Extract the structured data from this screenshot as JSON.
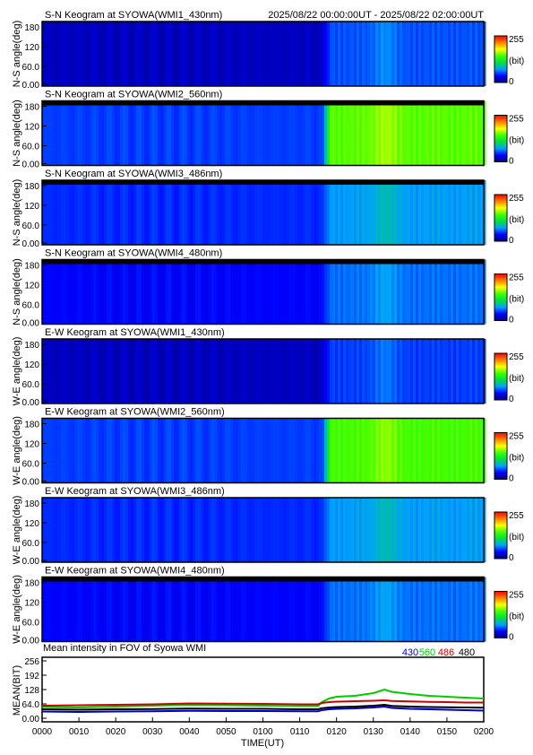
{
  "header": {
    "time_range": "2025/08/22 00:00:00UT - 2025/08/22 02:00:00UT"
  },
  "colors": {
    "colorbar": [
      "#00007f",
      "#0000ff",
      "#00a0ff",
      "#00e040",
      "#40ff00",
      "#ffff00",
      "#ff8000",
      "#ff0000"
    ],
    "line_430": "#0000cc",
    "line_560": "#00cc00",
    "line_486": "#cc0000",
    "line_480": "#000000"
  },
  "keograms": [
    {
      "title": "S-N Keogram at SYOWA(WMI1_430nm)",
      "ylabel": "N-S angle(deg)",
      "yticks": [
        "180",
        "120",
        "60.0",
        "0.00"
      ],
      "cbar_max": "255",
      "cbar_unit": "(bit)",
      "cbar_min": "0",
      "intensity_before": 0.07,
      "intensity_after": 0.22,
      "top_mask": false
    },
    {
      "title": "S-N Keogram at SYOWA(WMI2_560nm)",
      "ylabel": "N-S angle(deg)",
      "yticks": [
        "180",
        "120",
        "60.0",
        "0.00"
      ],
      "cbar_max": "255",
      "cbar_unit": "(bit)",
      "cbar_min": "0",
      "intensity_before": 0.2,
      "intensity_after": 0.62,
      "top_mask": true
    },
    {
      "title": "S-N Keogram at SYOWA(WMI3_486nm)",
      "ylabel": "N-S angle(deg)",
      "yticks": [
        "180",
        "120",
        "60.0",
        "0.00"
      ],
      "cbar_max": "255",
      "cbar_unit": "(bit)",
      "cbar_min": "0",
      "intensity_before": 0.18,
      "intensity_after": 0.3,
      "top_mask": true
    },
    {
      "title": "S-N Keogram at SYOWA(WMI4_480nm)",
      "ylabel": "N-S angle(deg)",
      "yticks": [
        "180",
        "120",
        "60.0",
        "0.00"
      ],
      "cbar_max": "255",
      "cbar_unit": "(bit)",
      "cbar_min": "0",
      "intensity_before": 0.14,
      "intensity_after": 0.25,
      "top_mask": true
    },
    {
      "title": "E-W Keogram at SYOWA(WMI1_430nm)",
      "ylabel": "W-E angle(deg)",
      "yticks": [
        "180",
        "120",
        "60.0",
        "0.00"
      ],
      "cbar_max": "255",
      "cbar_unit": "(bit)",
      "cbar_min": "0",
      "intensity_before": 0.07,
      "intensity_after": 0.2,
      "top_mask": false
    },
    {
      "title": "E-W Keogram at SYOWA(WMI2_560nm)",
      "ylabel": "W-E angle(deg)",
      "yticks": [
        "180",
        "120",
        "60.0",
        "0.00"
      ],
      "cbar_max": "255",
      "cbar_unit": "(bit)",
      "cbar_min": "0",
      "intensity_before": 0.2,
      "intensity_after": 0.6,
      "top_mask": false
    },
    {
      "title": "E-W Keogram at SYOWA(WMI3_486nm)",
      "ylabel": "W-E angle(deg)",
      "yticks": [
        "180",
        "120",
        "60.0",
        "0.00"
      ],
      "cbar_max": "255",
      "cbar_unit": "(bit)",
      "cbar_min": "0",
      "intensity_before": 0.18,
      "intensity_after": 0.3,
      "top_mask": false
    },
    {
      "title": "E-W Keogram at SYOWA(WMI4_480nm)",
      "ylabel": "W-E angle(deg)",
      "yticks": [
        "180",
        "120",
        "60.0",
        "0.00"
      ],
      "cbar_max": "255",
      "cbar_unit": "(bit)",
      "cbar_min": "0",
      "intensity_before": 0.14,
      "intensity_after": 0.25,
      "top_mask": true
    }
  ],
  "chart_data": {
    "type": "line",
    "title": "Mean intensity in FOV of Syowa WMI",
    "xlabel": "TIME(UT)",
    "ylabel": "MEAN(BIT)",
    "ylim": [
      0,
      256
    ],
    "xlim": [
      0,
      120
    ],
    "yticks": [
      "256",
      "192",
      "128",
      "64.0",
      "0.00"
    ],
    "ytick_values": [
      256,
      192,
      128,
      64,
      0
    ],
    "xticks": [
      "0000",
      "0010",
      "0020",
      "0030",
      "0040",
      "0050",
      "0100",
      "0110",
      "0120",
      "0130",
      "0140",
      "0150",
      "0200"
    ],
    "xtick_minutes": [
      0,
      10,
      20,
      30,
      40,
      50,
      60,
      70,
      80,
      90,
      100,
      110,
      120
    ],
    "x_minutes": [
      0,
      10,
      20,
      30,
      40,
      50,
      60,
      70,
      75,
      76,
      78,
      80,
      85,
      90,
      93,
      95,
      100,
      105,
      110,
      115,
      120
    ],
    "series": [
      {
        "name": "430",
        "color": "#0000cc",
        "values": [
          30,
          28,
          30,
          31,
          33,
          32,
          32,
          31,
          31,
          36,
          40,
          42,
          44,
          48,
          52,
          46,
          42,
          40,
          38,
          36,
          34
        ]
      },
      {
        "name": "560",
        "color": "#00cc00",
        "values": [
          50,
          48,
          52,
          56,
          60,
          58,
          56,
          54,
          54,
          72,
          88,
          96,
          100,
          112,
          128,
          118,
          108,
          100,
          96,
          92,
          88
        ]
      },
      {
        "name": "486",
        "color": "#cc0000",
        "values": [
          56,
          58,
          60,
          62,
          66,
          65,
          64,
          62,
          62,
          68,
          72,
          74,
          76,
          78,
          80,
          77,
          75,
          73,
          72,
          70,
          70
        ]
      },
      {
        "name": "480",
        "color": "#000000",
        "values": [
          40,
          38,
          40,
          41,
          43,
          42,
          42,
          40,
          40,
          45,
          48,
          50,
          52,
          56,
          60,
          55,
          52,
          50,
          49,
          48,
          47
        ]
      }
    ]
  }
}
